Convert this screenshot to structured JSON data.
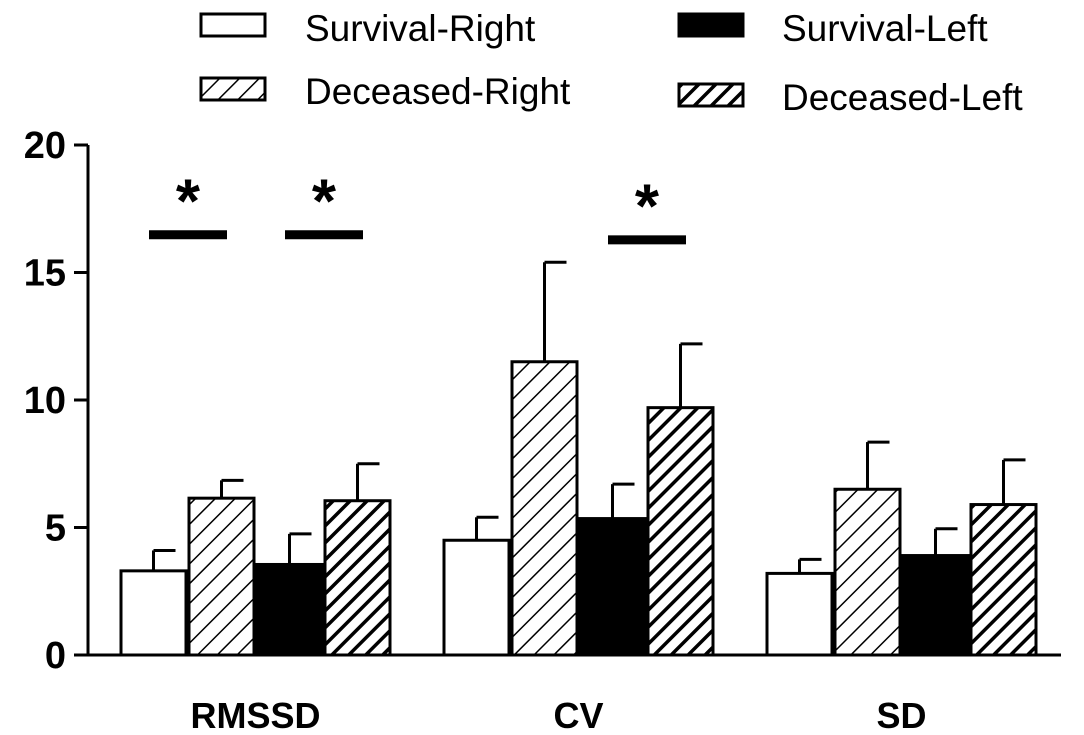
{
  "chart_data": {
    "type": "bar",
    "title": "",
    "xlabel": "",
    "ylabel": "",
    "ylim": [
      0,
      20
    ],
    "yticks": [
      0,
      5,
      10,
      15,
      20
    ],
    "categories": [
      "RMSSD",
      "CV",
      "SD"
    ],
    "series": [
      {
        "name": "Survival-Right",
        "pattern": "open",
        "values": [
          3.3,
          4.5,
          3.2
        ],
        "errors": [
          0.8,
          0.9,
          0.55
        ]
      },
      {
        "name": "Deceased-Right",
        "pattern": "hatch-light",
        "values": [
          6.15,
          11.5,
          6.5
        ],
        "errors": [
          0.7,
          3.9,
          1.85
        ]
      },
      {
        "name": "Survival-Left",
        "pattern": "solid",
        "values": [
          3.55,
          5.35,
          3.9
        ],
        "errors": [
          1.2,
          1.35,
          1.05
        ]
      },
      {
        "name": "Deceased-Left",
        "pattern": "hatch-dense",
        "values": [
          6.05,
          9.7,
          5.9
        ],
        "errors": [
          1.45,
          2.5,
          1.75
        ]
      }
    ],
    "annotations": [
      {
        "text": "*",
        "category": "RMSSD",
        "between": [
          "Survival-Right",
          "Deceased-Right"
        ],
        "y": 16.5
      },
      {
        "text": "*",
        "category": "RMSSD",
        "between": [
          "Survival-Left",
          "Deceased-Left"
        ],
        "y": 16.5
      },
      {
        "text": "*",
        "category": "CV",
        "between": [
          "Survival-Left",
          "Deceased-Left"
        ],
        "y": 16.3
      }
    ],
    "legend": {
      "placement": "top",
      "columns": 2,
      "order": [
        "Survival-Right",
        "Survival-Left",
        "Deceased-Right",
        "Deceased-Left"
      ]
    },
    "colors": {
      "bar_stroke": "#000000",
      "solid_fill": "#000000",
      "open_fill": "#ffffff"
    }
  }
}
